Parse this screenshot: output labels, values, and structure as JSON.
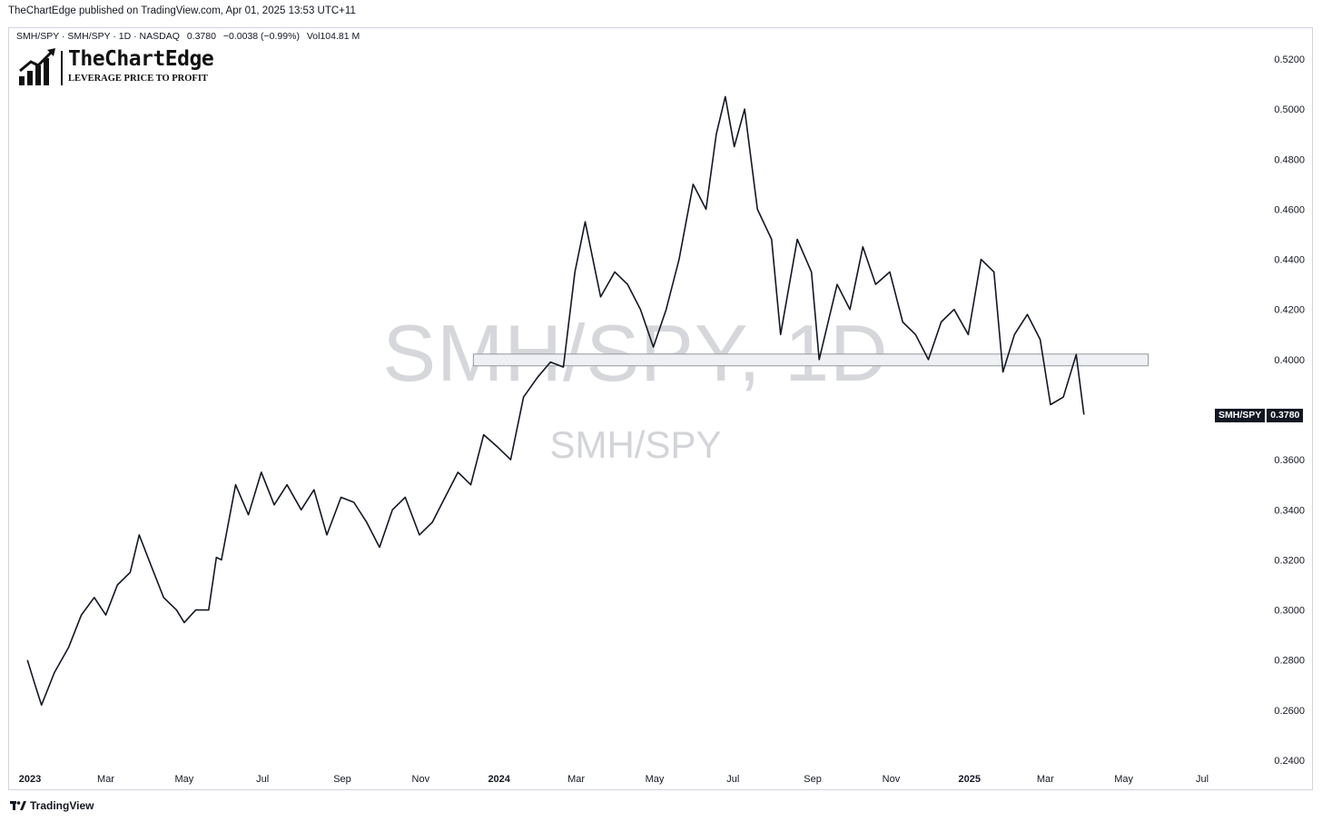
{
  "header": {
    "publish_line": "TheChartEdge published on TradingView.com, Apr 01, 2025 13:53 UTC+11"
  },
  "legend": {
    "symbol": "SMH/SPY · SMH/SPY · 1D · NASDAQ",
    "last": "0.3780",
    "change": "−0.0038 (−0.99%)",
    "volume": "Vol104.81 M"
  },
  "logo": {
    "name": "TheChartEdge",
    "tagline": "LEVERAGE PRICE TO PROFIT"
  },
  "watermark": {
    "main": "SMH/SPY, 1D",
    "sub": "SMH/SPY"
  },
  "price_tag": {
    "name": "SMH/SPY",
    "value": "0.3780"
  },
  "footer": {
    "brand": "TradingView"
  },
  "colors": {
    "line": "#131722",
    "zone_fill": "#eef0f3",
    "zone_border": "#9598a1"
  },
  "chart_data": {
    "type": "line",
    "series": [
      {
        "name": "SMH/SPY",
        "x": [
          "2022-12-30",
          "2023-01-05",
          "2023-01-10",
          "2023-01-20",
          "2023-01-31",
          "2023-02-10",
          "2023-02-20",
          "2023-03-01",
          "2023-03-10",
          "2023-03-20",
          "2023-03-27",
          "2023-04-05",
          "2023-04-15",
          "2023-04-25",
          "2023-05-01",
          "2023-05-10",
          "2023-05-20",
          "2023-05-26",
          "2023-05-30",
          "2023-06-10",
          "2023-06-20",
          "2023-06-30",
          "2023-07-10",
          "2023-07-20",
          "2023-07-31",
          "2023-08-10",
          "2023-08-20",
          "2023-08-31",
          "2023-09-10",
          "2023-09-20",
          "2023-09-30",
          "2023-10-10",
          "2023-10-20",
          "2023-10-31",
          "2023-11-10",
          "2023-11-20",
          "2023-11-30",
          "2023-12-10",
          "2023-12-20",
          "2023-12-31",
          "2024-01-10",
          "2024-01-20",
          "2024-01-31",
          "2024-02-10",
          "2024-02-20",
          "2024-02-29",
          "2024-03-08",
          "2024-03-20",
          "2024-03-31",
          "2024-04-10",
          "2024-04-20",
          "2024-04-30",
          "2024-05-10",
          "2024-05-20",
          "2024-05-31",
          "2024-06-10",
          "2024-06-18",
          "2024-06-25",
          "2024-07-02",
          "2024-07-10",
          "2024-07-20",
          "2024-07-31",
          "2024-08-07",
          "2024-08-20",
          "2024-08-31",
          "2024-09-06",
          "2024-09-20",
          "2024-09-30",
          "2024-10-10",
          "2024-10-20",
          "2024-10-31",
          "2024-11-10",
          "2024-11-20",
          "2024-11-30",
          "2024-12-10",
          "2024-12-20",
          "2024-12-31",
          "2025-01-10",
          "2025-01-20",
          "2025-01-27",
          "2025-02-05",
          "2025-02-15",
          "2025-02-25",
          "2025-03-05",
          "2025-03-15",
          "2025-03-25",
          "2025-03-31"
        ],
        "values": [
          0.28,
          0.27,
          0.262,
          0.275,
          0.285,
          0.298,
          0.305,
          0.298,
          0.31,
          0.315,
          0.33,
          0.318,
          0.305,
          0.3,
          0.295,
          0.3,
          0.3,
          0.321,
          0.32,
          0.35,
          0.338,
          0.355,
          0.342,
          0.35,
          0.34,
          0.348,
          0.33,
          0.345,
          0.343,
          0.335,
          0.325,
          0.34,
          0.345,
          0.33,
          0.335,
          0.345,
          0.355,
          0.35,
          0.37,
          0.365,
          0.36,
          0.385,
          0.393,
          0.399,
          0.397,
          0.435,
          0.455,
          0.425,
          0.435,
          0.43,
          0.42,
          0.405,
          0.42,
          0.44,
          0.47,
          0.46,
          0.49,
          0.505,
          0.485,
          0.5,
          0.46,
          0.448,
          0.41,
          0.448,
          0.435,
          0.4,
          0.43,
          0.42,
          0.445,
          0.43,
          0.435,
          0.415,
          0.41,
          0.4,
          0.415,
          0.42,
          0.41,
          0.44,
          0.435,
          0.395,
          0.41,
          0.418,
          0.408,
          0.382,
          0.385,
          0.402,
          0.378
        ]
      }
    ],
    "zone": {
      "label": "",
      "y_low": 0.3975,
      "y_high": 0.4022,
      "x_start": "2023-12-12",
      "x_end": "2025-05-20"
    },
    "ylim": [
      0.235,
      0.525
    ],
    "yticks": [
      "0.2400",
      "0.2600",
      "0.2800",
      "0.3000",
      "0.3200",
      "0.3400",
      "0.3600",
      "0.3800",
      "0.4000",
      "0.4200",
      "0.4400",
      "0.4600",
      "0.4800",
      "0.5000",
      "0.5200"
    ],
    "xticks": [
      {
        "label": "2023",
        "date": "2023-01-01",
        "bold": true
      },
      {
        "label": "Mar",
        "date": "2023-03-01"
      },
      {
        "label": "May",
        "date": "2023-05-01"
      },
      {
        "label": "Jul",
        "date": "2023-07-01"
      },
      {
        "label": "Sep",
        "date": "2023-09-01"
      },
      {
        "label": "Nov",
        "date": "2023-11-01"
      },
      {
        "label": "2024",
        "date": "2024-01-01",
        "bold": true
      },
      {
        "label": "Mar",
        "date": "2024-03-01"
      },
      {
        "label": "May",
        "date": "2024-05-01"
      },
      {
        "label": "Jul",
        "date": "2024-07-01"
      },
      {
        "label": "Sep",
        "date": "2024-09-01"
      },
      {
        "label": "Nov",
        "date": "2024-11-01"
      },
      {
        "label": "2025",
        "date": "2025-01-01",
        "bold": true
      },
      {
        "label": "Mar",
        "date": "2025-03-01"
      },
      {
        "label": "May",
        "date": "2025-05-01"
      },
      {
        "label": "Jul",
        "date": "2025-07-01"
      }
    ],
    "grid": false,
    "title": "",
    "xlabel": "",
    "ylabel": ""
  }
}
